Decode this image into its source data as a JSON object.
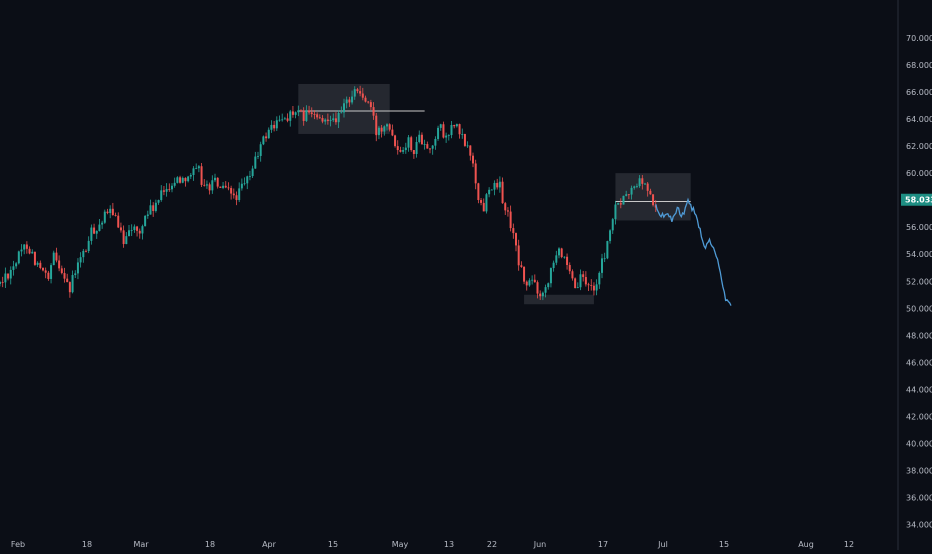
{
  "chart_data": {
    "type": "candlestick",
    "title": "",
    "xlabel": "",
    "ylabel": "",
    "ylim": [
      33.0,
      72.0
    ],
    "y_ticks": [
      "34.000",
      "36.000",
      "38.000",
      "40.000",
      "42.000",
      "44.000",
      "46.000",
      "48.000",
      "50.000",
      "52.000",
      "54.000",
      "56.000",
      "58.000",
      "60.000",
      "62.000",
      "64.000",
      "66.000",
      "68.000",
      "70.000"
    ],
    "x_ticks": [
      "Feb",
      "18",
      "Mar",
      "18",
      "Apr",
      "15",
      "May",
      "13",
      "22",
      "Jun",
      "17",
      "Jul",
      "15",
      "Aug",
      "12"
    ],
    "last_price": "58.033",
    "colors": {
      "background": "#0b0e16",
      "up": "#26a69a",
      "down": "#ef5350",
      "projection": "#4f9bd6",
      "zone_fill": "#2a2d35",
      "level_line": "#c8c8c8",
      "price_tag": "#1e8e83"
    },
    "grid": false,
    "price_path": [
      [
        0,
        51.8
      ],
      [
        3,
        53.5
      ],
      [
        5,
        54.8
      ],
      [
        7,
        53.2
      ],
      [
        9,
        52.0
      ],
      [
        10,
        53.8
      ],
      [
        12,
        52.6
      ],
      [
        13,
        51.3
      ],
      [
        14,
        52.8
      ],
      [
        16,
        54.4
      ],
      [
        17,
        55.6
      ],
      [
        19,
        56.5
      ],
      [
        21,
        57.3
      ],
      [
        22,
        55.8
      ],
      [
        23,
        55.0
      ],
      [
        24,
        56.2
      ],
      [
        26,
        55.4
      ],
      [
        27,
        56.9
      ],
      [
        29,
        57.6
      ],
      [
        31,
        59.0
      ],
      [
        33,
        59.5
      ],
      [
        35,
        59.9
      ],
      [
        37,
        60.1
      ],
      [
        38,
        58.9
      ],
      [
        40,
        59.3
      ],
      [
        42,
        58.6
      ],
      [
        44,
        58.3
      ],
      [
        46,
        59.4
      ],
      [
        48,
        61.5
      ],
      [
        50,
        63.3
      ],
      [
        52,
        63.8
      ],
      [
        54,
        64.4
      ],
      [
        56,
        64.2
      ],
      [
        58,
        64.4
      ],
      [
        60,
        63.6
      ],
      [
        61,
        64.3
      ],
      [
        63,
        64.1
      ],
      [
        65,
        65.6
      ],
      [
        66,
        66.2
      ],
      [
        67,
        65.9
      ],
      [
        69,
        64.8
      ],
      [
        70,
        63.0
      ],
      [
        71,
        63.5
      ],
      [
        72,
        64.0
      ],
      [
        73,
        63.0
      ],
      [
        74,
        61.8
      ],
      [
        76,
        62.4
      ],
      [
        77,
        61.8
      ],
      [
        78,
        62.6
      ],
      [
        79,
        62.4
      ],
      [
        80,
        61.7
      ],
      [
        81,
        62.8
      ],
      [
        82,
        63.3
      ],
      [
        83,
        62.4
      ],
      [
        84,
        63.5
      ],
      [
        85,
        63.3
      ],
      [
        87,
        61.8
      ],
      [
        88,
        60.9
      ],
      [
        89,
        58.0
      ],
      [
        90,
        57.4
      ],
      [
        91,
        59.2
      ],
      [
        92,
        58.9
      ],
      [
        93,
        59.0
      ],
      [
        94,
        57.3
      ],
      [
        95,
        56.3
      ],
      [
        96,
        54.3
      ],
      [
        97,
        52.7
      ],
      [
        98,
        51.6
      ],
      [
        99,
        52.1
      ],
      [
        100,
        51.4
      ],
      [
        101,
        51.0
      ],
      [
        102,
        52.3
      ],
      [
        103,
        53.8
      ],
      [
        104,
        54.6
      ],
      [
        105,
        53.4
      ],
      [
        106,
        52.3
      ],
      [
        107,
        51.4
      ],
      [
        108,
        52.1
      ],
      [
        109,
        51.9
      ],
      [
        110,
        51.5
      ],
      [
        111,
        51.9
      ],
      [
        112,
        53.3
      ],
      [
        113,
        54.8
      ],
      [
        114,
        56.7
      ],
      [
        115,
        57.8
      ],
      [
        116,
        58.0
      ],
      [
        117,
        58.5
      ],
      [
        118,
        58.9
      ],
      [
        119,
        59.5
      ],
      [
        120,
        59.1
      ],
      [
        121,
        58.3
      ],
      [
        122,
        57.5
      ]
    ],
    "projection_path": [
      [
        122,
        57.5
      ],
      [
        123,
        56.8
      ],
      [
        124,
        57.0
      ],
      [
        125,
        56.6
      ],
      [
        126,
        57.4
      ],
      [
        127,
        56.9
      ],
      [
        128,
        57.8
      ],
      [
        129,
        57.3
      ],
      [
        130,
        56.2
      ],
      [
        131,
        54.5
      ],
      [
        132,
        55.0
      ],
      [
        133,
        54.3
      ],
      [
        134,
        52.5
      ],
      [
        135,
        50.7
      ],
      [
        136,
        50.0
      ]
    ],
    "zones": [
      {
        "x0": 55.5,
        "x1": 72.5,
        "y0": 62.9,
        "y1": 66.6
      },
      {
        "x0": 97.5,
        "x1": 110.5,
        "y0": 50.3,
        "y1": 51.0
      },
      {
        "x0": 114.5,
        "x1": 128.5,
        "y0": 56.5,
        "y1": 60.0
      }
    ],
    "levels": [
      {
        "x0": 55.5,
        "x1": 79,
        "y": 64.6
      },
      {
        "x0": 114.5,
        "x1": 128.5,
        "y": 57.9
      }
    ]
  }
}
